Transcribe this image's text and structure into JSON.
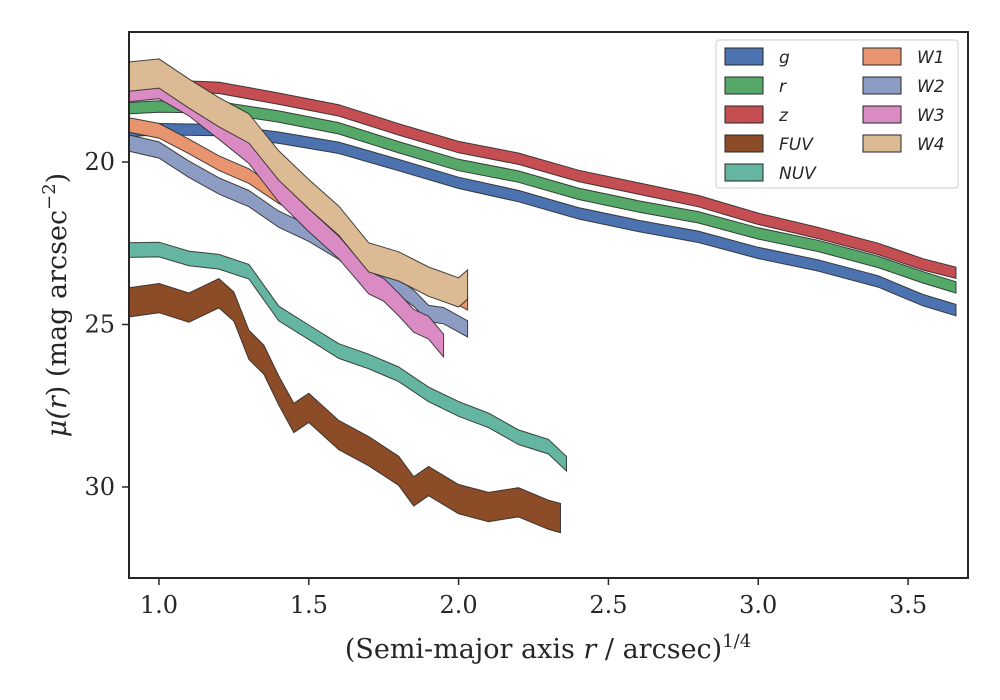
{
  "chart_data": {
    "type": "area",
    "title": "",
    "xlabel_parts": [
      "(Semi-major axis ",
      "r",
      " / arcsec)",
      "1/4"
    ],
    "ylabel_parts": [
      "μ(",
      "r",
      ") (mag arcsec",
      "−2",
      ")"
    ],
    "xlim": [
      0.9,
      3.7
    ],
    "ylim": [
      32.8,
      16.0
    ],
    "y_inverted": true,
    "xticks": [
      1.0,
      1.5,
      2.0,
      2.5,
      3.0,
      3.5
    ],
    "xtick_labels": [
      "1.0",
      "1.5",
      "2.0",
      "2.5",
      "3.0",
      "3.5"
    ],
    "yticks": [
      20,
      25,
      30
    ],
    "ytick_labels": [
      "20",
      "25",
      "30"
    ],
    "grid": false,
    "legend_placement": "top-right",
    "legend_columns": 2,
    "series": [
      {
        "name": "g",
        "color": "#4c72b0",
        "x": [
          0.9,
          1.0,
          1.2,
          1.4,
          1.6,
          1.8,
          2.0,
          2.2,
          2.4,
          2.6,
          2.8,
          3.0,
          3.2,
          3.4,
          3.55,
          3.66
        ],
        "y": [
          19.0,
          19.0,
          19.05,
          19.2,
          19.6,
          20.1,
          20.6,
          21.1,
          21.55,
          21.95,
          22.35,
          22.75,
          23.2,
          23.7,
          24.2,
          24.6
        ],
        "width": 0.35
      },
      {
        "name": "r",
        "color": "#55a868",
        "x": [
          0.9,
          1.0,
          1.2,
          1.4,
          1.6,
          1.8,
          2.0,
          2.2,
          2.4,
          2.6,
          2.8,
          3.0,
          3.2,
          3.4,
          3.55,
          3.66
        ],
        "y": [
          18.3,
          18.3,
          18.35,
          18.55,
          19.0,
          19.55,
          20.05,
          20.5,
          20.95,
          21.35,
          21.75,
          22.15,
          22.6,
          23.1,
          23.5,
          23.9
        ],
        "width": 0.35
      },
      {
        "name": "z",
        "color": "#c44e52",
        "x": [
          0.9,
          1.0,
          1.2,
          1.4,
          1.6,
          1.8,
          2.0,
          2.2,
          2.4,
          2.6,
          2.8,
          3.0,
          3.2,
          3.4,
          3.55,
          3.66
        ],
        "y": [
          17.65,
          17.65,
          17.75,
          18.0,
          18.45,
          19.0,
          19.5,
          19.95,
          20.4,
          20.8,
          21.25,
          21.7,
          22.2,
          22.7,
          23.1,
          23.45
        ],
        "width": 0.35
      },
      {
        "name": "FUV",
        "color": "#8c4c28",
        "x": [
          0.9,
          1.0,
          1.1,
          1.2,
          1.25,
          1.3,
          1.35,
          1.4,
          1.45,
          1.5,
          1.6,
          1.7,
          1.8,
          1.85,
          1.9,
          2.0,
          2.1,
          2.2,
          2.3,
          2.34
        ],
        "y": [
          24.3,
          24.3,
          24.35,
          24.1,
          24.5,
          25.5,
          26.2,
          27.0,
          27.8,
          27.7,
          28.3,
          28.9,
          29.6,
          30.0,
          29.9,
          30.4,
          30.5,
          30.6,
          30.8,
          30.9
        ],
        "width": 0.9
      },
      {
        "name": "NUV",
        "color": "#64b5a1",
        "x": [
          0.9,
          1.0,
          1.1,
          1.2,
          1.3,
          1.4,
          1.5,
          1.6,
          1.7,
          1.8,
          1.9,
          2.0,
          2.1,
          2.2,
          2.3,
          2.36
        ],
        "y": [
          22.7,
          22.75,
          22.9,
          23.1,
          23.4,
          24.6,
          25.3,
          25.8,
          26.1,
          26.6,
          27.1,
          27.6,
          28.0,
          28.4,
          28.8,
          29.3
        ],
        "width": 0.45
      },
      {
        "name": "W1",
        "color": "#e8956f",
        "x": [
          0.9,
          1.0,
          1.1,
          1.2,
          1.3,
          1.4,
          1.5,
          1.6,
          1.7,
          1.8,
          1.85,
          1.9,
          1.95,
          2.03
        ],
        "y": [
          18.8,
          19.1,
          19.5,
          20.0,
          20.5,
          21.0,
          21.5,
          22.1,
          22.8,
          23.3,
          23.6,
          23.8,
          24.0,
          24.3
        ],
        "width": 0.45
      },
      {
        "name": "W2",
        "color": "#8c9cc3",
        "x": [
          0.9,
          1.0,
          1.1,
          1.2,
          1.3,
          1.4,
          1.5,
          1.6,
          1.7,
          1.8,
          1.85,
          1.9,
          1.95,
          2.03
        ],
        "y": [
          19.35,
          19.7,
          20.2,
          20.7,
          21.2,
          21.7,
          22.2,
          22.8,
          23.4,
          23.9,
          24.2,
          24.6,
          24.8,
          25.1
        ],
        "width": 0.5
      },
      {
        "name": "W3",
        "color": "#da8bc3",
        "x": [
          0.9,
          1.0,
          1.1,
          1.2,
          1.3,
          1.4,
          1.5,
          1.6,
          1.7,
          1.75,
          1.8,
          1.85,
          1.9,
          1.95
        ],
        "y": [
          17.7,
          17.8,
          18.2,
          18.9,
          19.8,
          20.8,
          21.8,
          22.7,
          23.6,
          24.0,
          24.4,
          24.8,
          25.2,
          25.6
        ],
        "width": 0.7
      },
      {
        "name": "W4",
        "color": "#dcbb94",
        "x": [
          0.9,
          1.0,
          1.1,
          1.2,
          1.3,
          1.4,
          1.5,
          1.6,
          1.7,
          1.8,
          1.9,
          2.0,
          2.03
        ],
        "y": [
          17.25,
          17.4,
          17.85,
          18.4,
          19.1,
          20.0,
          21.0,
          21.9,
          22.8,
          23.3,
          23.7,
          23.9,
          23.9
        ],
        "width": 0.9
      }
    ]
  }
}
